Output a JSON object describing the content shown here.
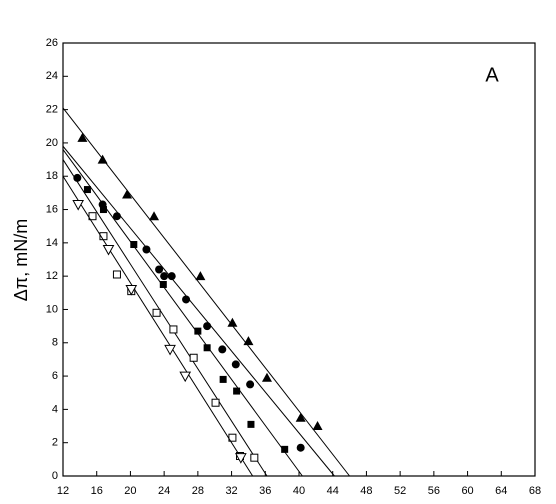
{
  "chart_data": {
    "type": "scatter",
    "y_label": "Δπ, mN/m",
    "annotation": "A",
    "xlim": [
      12,
      68
    ],
    "xticks": [
      12,
      16,
      20,
      24,
      28,
      32,
      36,
      40,
      44,
      48,
      52,
      56,
      60,
      64,
      68
    ],
    "ylim": [
      0,
      26
    ],
    "yticks": [
      0,
      2,
      4,
      6,
      8,
      10,
      12,
      14,
      16,
      18,
      20,
      22,
      24,
      26
    ],
    "series": [
      {
        "marker": "triangle-up-filled",
        "color": "#000000",
        "x": [
          14.3,
          16.7,
          19.6,
          22.8,
          28.3,
          32.1,
          34.0,
          36.2,
          40.2,
          42.2
        ],
        "values": [
          20.3,
          19.0,
          16.9,
          15.6,
          12.0,
          9.2,
          8.1,
          5.9,
          3.5,
          3.0
        ],
        "fit": {
          "x": [
            12,
            46.0
          ],
          "y": [
            22.1,
            0
          ]
        }
      },
      {
        "marker": "circle-filled",
        "color": "#000000",
        "x": [
          13.7,
          16.7,
          18.4,
          21.9,
          23.4,
          24.0,
          24.9,
          26.6,
          29.1,
          30.9,
          32.5,
          34.2,
          40.2
        ],
        "values": [
          17.9,
          16.3,
          15.6,
          13.6,
          12.4,
          12.0,
          12.0,
          10.6,
          9.0,
          7.6,
          6.7,
          5.5,
          1.7
        ],
        "fit": {
          "x": [
            12,
            44.2
          ],
          "y": [
            19.8,
            0
          ]
        }
      },
      {
        "marker": "square-filled",
        "color": "#000000",
        "x": [
          14.9,
          16.8,
          20.4,
          23.9,
          28.0,
          29.1,
          31.0,
          32.6,
          34.3,
          38.3
        ],
        "values": [
          17.2,
          16.0,
          13.9,
          11.5,
          8.7,
          7.7,
          5.8,
          5.1,
          3.1,
          1.6
        ],
        "fit": {
          "x": [
            12,
            40.4
          ],
          "y": [
            19.6,
            0
          ]
        }
      },
      {
        "marker": "square-open",
        "color": "#000000",
        "x": [
          15.5,
          16.8,
          18.4,
          20.1,
          23.1,
          25.1,
          27.5,
          30.1,
          32.1,
          33.0,
          34.7
        ],
        "values": [
          15.6,
          14.4,
          12.1,
          11.1,
          9.8,
          8.8,
          7.1,
          4.4,
          2.3,
          1.2,
          1.1
        ],
        "fit": {
          "x": [
            12,
            36.2
          ],
          "y": [
            19.0,
            0
          ]
        }
      },
      {
        "marker": "triangle-down-open",
        "color": "#000000",
        "x": [
          13.8,
          17.4,
          20.1,
          24.7,
          26.5,
          33.1
        ],
        "values": [
          16.3,
          13.6,
          11.2,
          7.6,
          6.0,
          1.1
        ],
        "fit": {
          "x": [
            12,
            34.5
          ],
          "y": [
            18.0,
            0
          ]
        }
      }
    ]
  }
}
